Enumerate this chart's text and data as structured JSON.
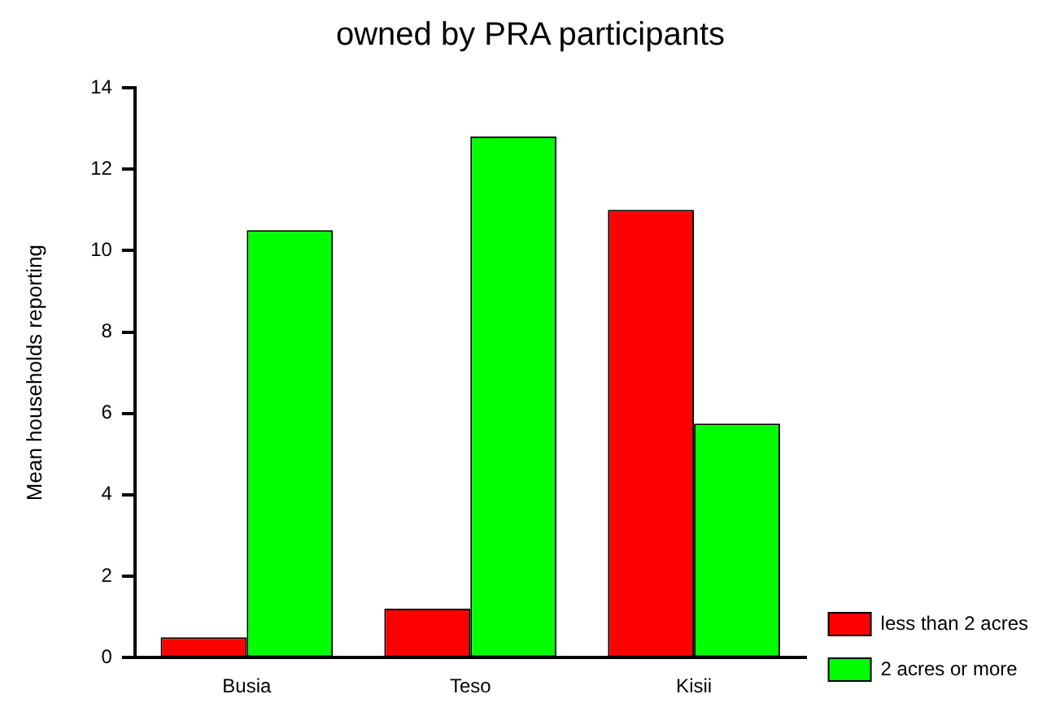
{
  "chart_data": {
    "type": "bar",
    "title": "owned by PRA participants",
    "ylabel": "Mean households reporting",
    "categories": [
      "Busia",
      "Teso",
      "Kisii"
    ],
    "series": [
      {
        "name": "less than 2 acres",
        "color": "#ff0000",
        "values": [
          0.5,
          1.2,
          11
        ]
      },
      {
        "name": "2 acres or more",
        "color": "#00ff00",
        "values": [
          10.5,
          12.8,
          5.75
        ]
      }
    ],
    "ylim": [
      0,
      14
    ],
    "yticks": [
      0,
      2,
      4,
      6,
      8,
      10,
      12,
      14
    ],
    "grid": false,
    "legend": "bottom right"
  }
}
